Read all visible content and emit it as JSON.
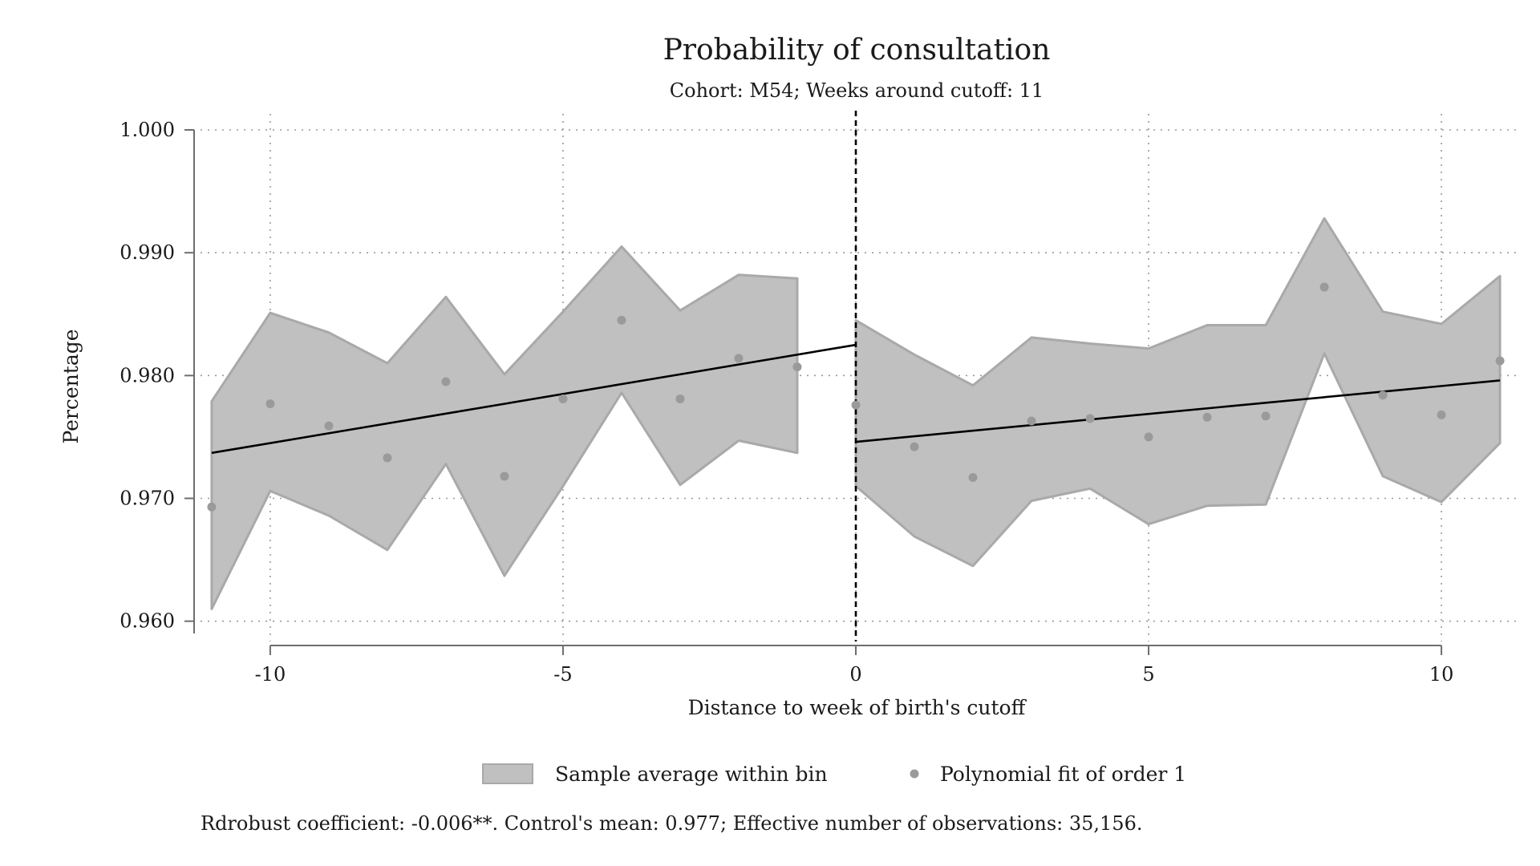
{
  "chart_data": {
    "type": "scatter",
    "title": "Probability of consultation",
    "subtitle": "Cohort: M54; Weeks around cutoff: 11",
    "xlabel": "Distance to week of birth's cutoff",
    "ylabel": "Percentage",
    "xlim": [
      -11.3,
      11.3
    ],
    "ylim": [
      0.959,
      1.0
    ],
    "xticks": [
      -10,
      -5,
      0,
      5,
      10
    ],
    "xtick_labels": [
      "-10",
      "-5",
      "0",
      "5",
      "10"
    ],
    "yticks": [
      0.96,
      0.97,
      0.98,
      0.99,
      1.0
    ],
    "ytick_labels": [
      "0.960",
      "0.970",
      "0.980",
      "0.990",
      "1.000"
    ],
    "grid": true,
    "cutoff_x": 0,
    "legend_position": "bottom",
    "legend": [
      "Sample average within bin",
      "Polynomial fit of order 1"
    ],
    "note": "Rdrobust coefficient: -0.006**. Control's mean: 0.977; Effective number of observations: 35,156.",
    "colors": {
      "band": "#c0c0c0",
      "band_edge": "#a9a9a9",
      "points": "#9a9a9a",
      "fit": "#000000"
    },
    "bins": {
      "x": [
        -11,
        -10,
        -9,
        -8,
        -7,
        -6,
        -5,
        -4,
        -3,
        -2,
        -1,
        0,
        1,
        2,
        3,
        4,
        5,
        6,
        7,
        8,
        9,
        10,
        11
      ],
      "mean": [
        0.9693,
        0.9777,
        0.9759,
        0.9733,
        0.9795,
        0.9718,
        0.9781,
        0.9845,
        0.9781,
        0.9814,
        0.9807,
        0.9776,
        0.9742,
        0.9717,
        0.9763,
        0.9765,
        0.975,
        0.9766,
        0.9767,
        0.9872,
        0.9784,
        0.9768,
        0.9812
      ],
      "ci_low": [
        0.961,
        0.9706,
        0.9686,
        0.9658,
        0.9728,
        0.9637,
        0.971,
        0.9786,
        0.9711,
        0.9747,
        0.9737,
        0.971,
        0.9669,
        0.9645,
        0.9698,
        0.9708,
        0.9679,
        0.9694,
        0.9695,
        0.9818,
        0.9718,
        0.9697,
        0.9745
      ],
      "ci_high": [
        0.9779,
        0.9851,
        0.9835,
        0.981,
        0.9864,
        0.9801,
        0.9852,
        0.9905,
        0.9853,
        0.9882,
        0.9879,
        0.9845,
        0.9817,
        0.9792,
        0.9831,
        0.9826,
        0.9822,
        0.9841,
        0.9841,
        0.9928,
        0.9852,
        0.9842,
        0.9881
      ]
    },
    "fits": [
      {
        "x": [
          -11,
          0
        ],
        "y": [
          0.9737,
          0.9825
        ]
      },
      {
        "x": [
          0,
          11
        ],
        "y": [
          0.9746,
          0.9796
        ]
      }
    ]
  }
}
